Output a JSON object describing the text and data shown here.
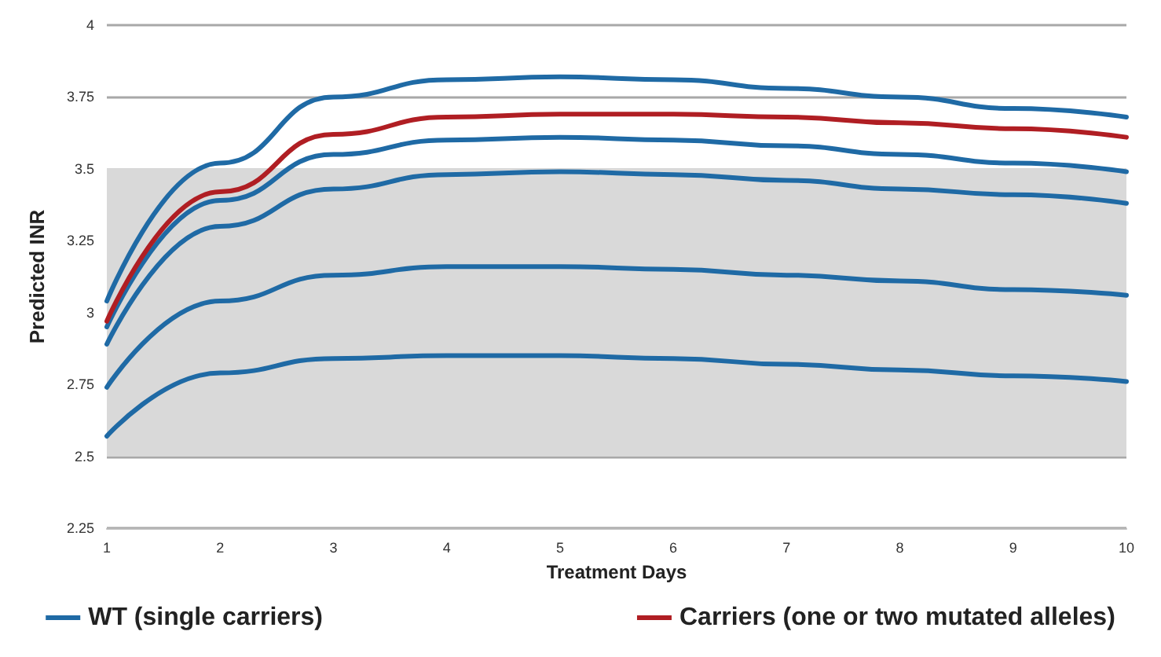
{
  "chart_data": {
    "type": "line",
    "xlabel": "Treatment Days",
    "ylabel": "Predicted INR",
    "x": [
      1,
      2,
      3,
      4,
      5,
      6,
      7,
      8,
      9,
      10
    ],
    "xlim": [
      1,
      10
    ],
    "xticks": [
      1,
      2,
      3,
      4,
      5,
      6,
      7,
      8,
      9,
      10
    ],
    "ylim": [
      2.25,
      4
    ],
    "yticks": [
      2.25,
      2.5,
      2.75,
      3,
      3.25,
      3.5,
      3.75,
      4
    ],
    "grid": "y",
    "legend": "bottom",
    "marker": "none",
    "line_style": "solid",
    "bands": [
      {
        "axis": "y",
        "from": 2.5,
        "to": 3.5,
        "color": "#d9d9d9"
      }
    ],
    "series": [
      {
        "name": "WT (single carriers)",
        "color": "#1f6aa5",
        "values": [
          3.04,
          3.52,
          3.75,
          3.81,
          3.82,
          3.81,
          3.78,
          3.75,
          3.71,
          3.68
        ]
      },
      {
        "name": "Carriers (one or two mutated alleles)",
        "color": "#b01e23",
        "values": [
          2.97,
          3.42,
          3.62,
          3.68,
          3.69,
          3.69,
          3.68,
          3.66,
          3.64,
          3.61
        ]
      },
      {
        "color": "#1f6aa5",
        "values": [
          2.95,
          3.39,
          3.55,
          3.6,
          3.61,
          3.6,
          3.58,
          3.55,
          3.52,
          3.49
        ]
      },
      {
        "color": "#1f6aa5",
        "values": [
          2.89,
          3.3,
          3.43,
          3.48,
          3.49,
          3.48,
          3.46,
          3.43,
          3.41,
          3.38
        ]
      },
      {
        "color": "#1f6aa5",
        "values": [
          2.74,
          3.04,
          3.13,
          3.16,
          3.16,
          3.15,
          3.13,
          3.11,
          3.08,
          3.06
        ]
      },
      {
        "color": "#1f6aa5",
        "values": [
          2.57,
          2.79,
          2.84,
          2.85,
          2.85,
          2.84,
          2.82,
          2.8,
          2.78,
          2.76
        ]
      }
    ]
  }
}
